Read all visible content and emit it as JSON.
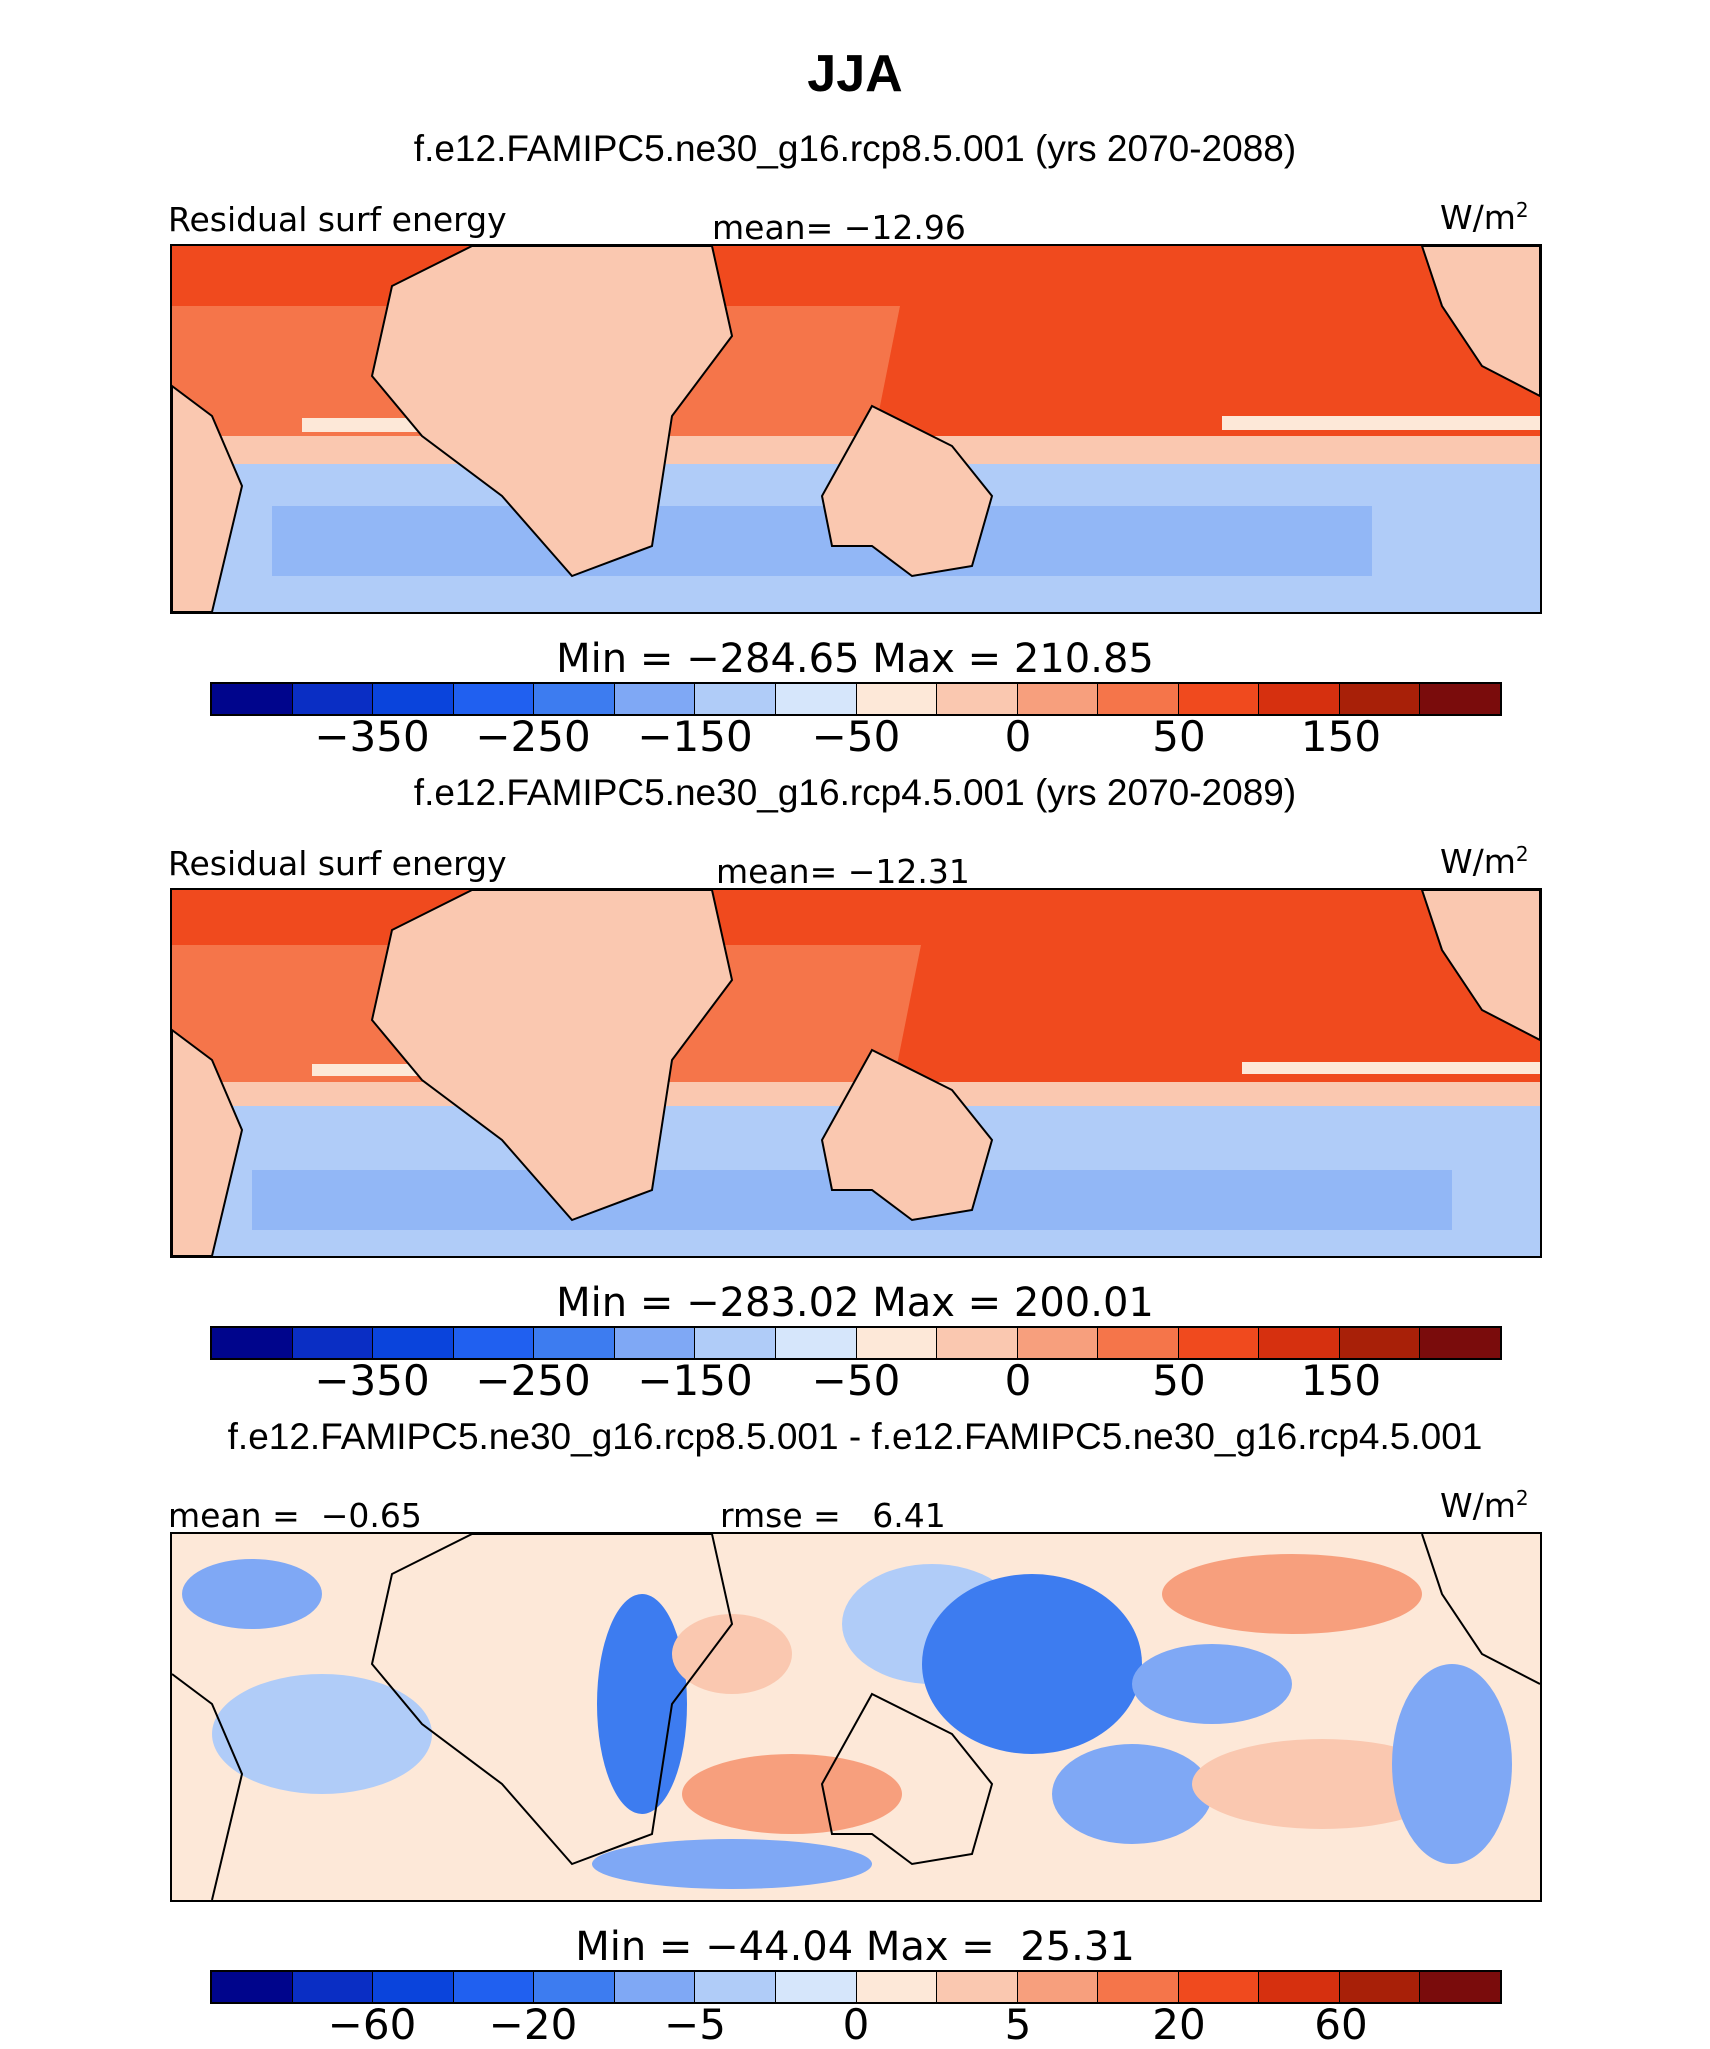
{
  "title": "JJA",
  "colors": {
    "abs_palette": [
      "#00058c",
      "#0a2ec4",
      "#0a44dc",
      "#2060f0",
      "#3d7cf0",
      "#7fa8f5",
      "#b0ccf8",
      "#d6e6fb",
      "#fde8d8",
      "#fac8b0",
      "#f79f7d",
      "#f5754a",
      "#f04a1e",
      "#d6300f",
      "#a82008",
      "#7a0c0c"
    ],
    "diff_palette": [
      "#00058c",
      "#0a2ec4",
      "#0a44dc",
      "#2060f0",
      "#3d7cf0",
      "#7fa8f5",
      "#b0ccf8",
      "#d6e6fb",
      "#fde8d8",
      "#fac8b0",
      "#f79f7d",
      "#f5754a",
      "#f04a1e",
      "#d6300f",
      "#a82008",
      "#7a0c0c"
    ]
  },
  "panels": [
    {
      "case": "f.e12.FAMIPC5.ne30_g16.rcp8.5.001 (yrs 2070-2088)",
      "left_label": "Residual surf energy",
      "center_label": "mean= −12.96",
      "units": "W/m",
      "units_sup": "2",
      "minmax": "Min = −284.65 Max = 210.85",
      "ticks": [
        "−350",
        "−250",
        "−150",
        "−50",
        "0",
        "50",
        "150"
      ]
    },
    {
      "case": "f.e12.FAMIPC5.ne30_g16.rcp4.5.001 (yrs 2070-2089)",
      "left_label": "Residual surf energy",
      "center_label": "mean= −12.31",
      "units": "W/m",
      "units_sup": "2",
      "minmax": "Min = −283.02 Max = 200.01",
      "ticks": [
        "−350",
        "−250",
        "−150",
        "−50",
        "0",
        "50",
        "150"
      ]
    },
    {
      "case": "f.e12.FAMIPC5.ne30_g16.rcp8.5.001 - f.e12.FAMIPC5.ne30_g16.rcp4.5.001",
      "left_label": "mean =  −0.65",
      "center_label": "rmse =   6.41",
      "units": "W/m",
      "units_sup": "2",
      "minmax": "Min = −44.04 Max =  25.31",
      "ticks": [
        "−60",
        "−20",
        "−5",
        "0",
        "5",
        "20",
        "60"
      ]
    }
  ]
}
